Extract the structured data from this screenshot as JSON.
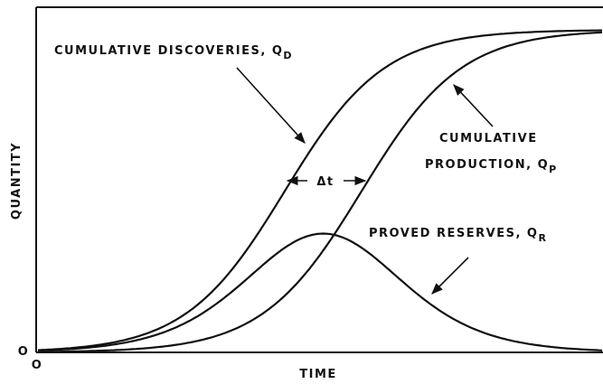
{
  "axes": {
    "y_label": "QUANTITY",
    "x_label": "TIME",
    "origin_y": "O",
    "origin_x": "O"
  },
  "delta_t": "Δt",
  "curves": [
    {
      "lines": [
        "CUMULATIVE DISCOVERIES, Q"
      ],
      "subscript": "D"
    },
    {
      "lines": [
        "CUMULATIVE",
        "PRODUCTION, Q"
      ],
      "subscript": "P"
    },
    {
      "lines": [
        "PROVED RESERVES, Q"
      ],
      "subscript": "R"
    }
  ]
}
